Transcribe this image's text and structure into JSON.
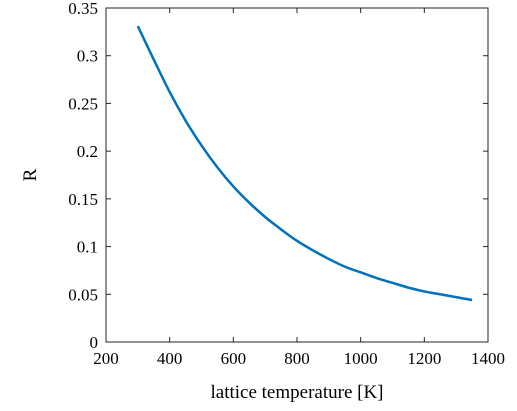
{
  "chart_data": {
    "type": "line",
    "title": "",
    "xlabel": "lattice temperature [K]",
    "ylabel": "R",
    "xlim": [
      200,
      1400
    ],
    "ylim": [
      0,
      0.35
    ],
    "xticks": [
      200,
      400,
      600,
      800,
      1000,
      1200,
      1400
    ],
    "xtick_labels": [
      "200",
      "400",
      "600",
      "800",
      "1000",
      "1200",
      "1400"
    ],
    "yticks": [
      0,
      0.05,
      0.1,
      0.15,
      0.2,
      0.25,
      0.3,
      0.35
    ],
    "ytick_labels": [
      "0",
      "0.05",
      "0.1",
      "0.15",
      "0.2",
      "0.25",
      "0.3",
      "0.35"
    ],
    "grid": false,
    "legend": "none",
    "series": [
      {
        "color": "#0072bd",
        "x": [
          300,
          350,
          400,
          450,
          500,
          550,
          600,
          650,
          700,
          750,
          800,
          850,
          900,
          950,
          1000,
          1050,
          1100,
          1150,
          1200,
          1250,
          1300,
          1350
        ],
        "y": [
          0.331,
          0.296,
          0.262,
          0.232,
          0.206,
          0.183,
          0.163,
          0.146,
          0.131,
          0.118,
          0.106,
          0.096,
          0.087,
          0.079,
          0.073,
          0.067,
          0.062,
          0.057,
          0.053,
          0.05,
          0.047,
          0.044
        ]
      }
    ]
  }
}
